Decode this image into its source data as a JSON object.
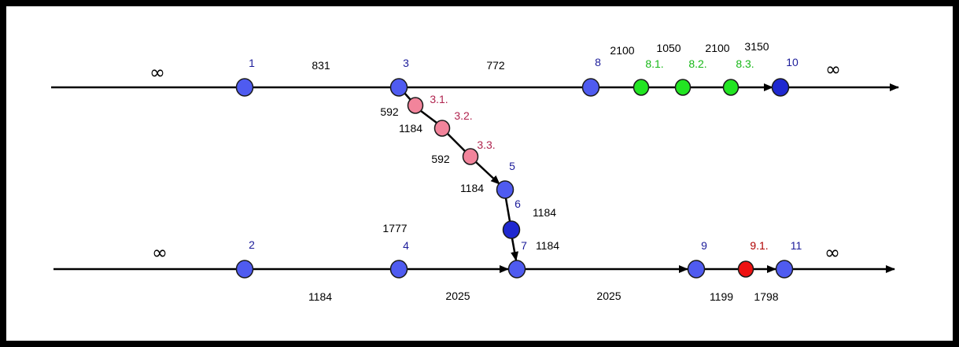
{
  "colors": {
    "node_blue": "#4f5bf0",
    "node_dark_blue": "#1f28d0",
    "node_pink": "#f2849b",
    "node_green": "#22e522",
    "node_red": "#ee1111",
    "label_blue": "#1c1c9a",
    "label_pink": "#b0234e",
    "label_green": "#18b818",
    "label_red": "#b00000",
    "edge": "#000000"
  },
  "nodes": [
    {
      "id": "1",
      "label": "1",
      "kind": "main"
    },
    {
      "id": "2",
      "label": "2",
      "kind": "main"
    },
    {
      "id": "3",
      "label": "3",
      "kind": "main"
    },
    {
      "id": "4",
      "label": "4",
      "kind": "main"
    },
    {
      "id": "5",
      "label": "5",
      "kind": "main"
    },
    {
      "id": "6",
      "label": "6",
      "kind": "main-dark"
    },
    {
      "id": "7",
      "label": "7",
      "kind": "main"
    },
    {
      "id": "8",
      "label": "8",
      "kind": "main"
    },
    {
      "id": "9",
      "label": "9",
      "kind": "main"
    },
    {
      "id": "10",
      "label": "10",
      "kind": "main-dark"
    },
    {
      "id": "11",
      "label": "11",
      "kind": "main"
    },
    {
      "id": "3.1",
      "label": "3.1.",
      "kind": "pink"
    },
    {
      "id": "3.2",
      "label": "3.2.",
      "kind": "pink"
    },
    {
      "id": "3.3",
      "label": "3.3.",
      "kind": "pink"
    },
    {
      "id": "8.1",
      "label": "8.1.",
      "kind": "green"
    },
    {
      "id": "8.2",
      "label": "8.2.",
      "kind": "green"
    },
    {
      "id": "8.3",
      "label": "8.3.",
      "kind": "green"
    },
    {
      "id": "9.1",
      "label": "9.1.",
      "kind": "red"
    }
  ],
  "edges": [
    {
      "id": "in-top",
      "from": "",
      "to": "1",
      "label": "∞"
    },
    {
      "id": "1-3",
      "from": "1",
      "to": "3",
      "label": "831"
    },
    {
      "id": "3-8",
      "from": "3",
      "to": "8",
      "label": "772"
    },
    {
      "id": "8-8.1",
      "from": "8",
      "to": "8.1",
      "label": "2100"
    },
    {
      "id": "8.1-8.2",
      "from": "8.1",
      "to": "8.2",
      "label": "1050"
    },
    {
      "id": "8.2-8.3",
      "from": "8.2",
      "to": "8.3",
      "label": "2100"
    },
    {
      "id": "8.3-10",
      "from": "8.3",
      "to": "10",
      "label": "3150"
    },
    {
      "id": "10-out",
      "from": "10",
      "to": "",
      "label": "∞"
    },
    {
      "id": "3-3.1",
      "from": "3",
      "to": "3.1",
      "label": "592"
    },
    {
      "id": "3.1-3.2",
      "from": "3.1",
      "to": "3.2",
      "label": "1184"
    },
    {
      "id": "3.2-3.3",
      "from": "3.2",
      "to": "3.3",
      "label": "592"
    },
    {
      "id": "3.3-5",
      "from": "3.3",
      "to": "5",
      "label": "1184"
    },
    {
      "id": "5-6",
      "from": "5",
      "to": "6",
      "label": "1184"
    },
    {
      "id": "6-7",
      "from": "6",
      "to": "7",
      "label": "1184"
    },
    {
      "id": "in-bottom",
      "from": "",
      "to": "2",
      "label": "∞"
    },
    {
      "id": "2-4",
      "from": "2",
      "to": "4",
      "label": "1184"
    },
    {
      "id": "4-7",
      "from": "4",
      "to": "7",
      "label": "2025"
    },
    {
      "id": "4-top",
      "from": "4",
      "to": "",
      "label": "1777"
    },
    {
      "id": "7-9",
      "from": "7",
      "to": "9",
      "label": "2025"
    },
    {
      "id": "9-9.1",
      "from": "9",
      "to": "9.1",
      "label": "1199"
    },
    {
      "id": "9.1-11",
      "from": "9.1",
      "to": "11",
      "label": "1798"
    },
    {
      "id": "11-out",
      "from": "11",
      "to": "",
      "label": "∞"
    }
  ]
}
